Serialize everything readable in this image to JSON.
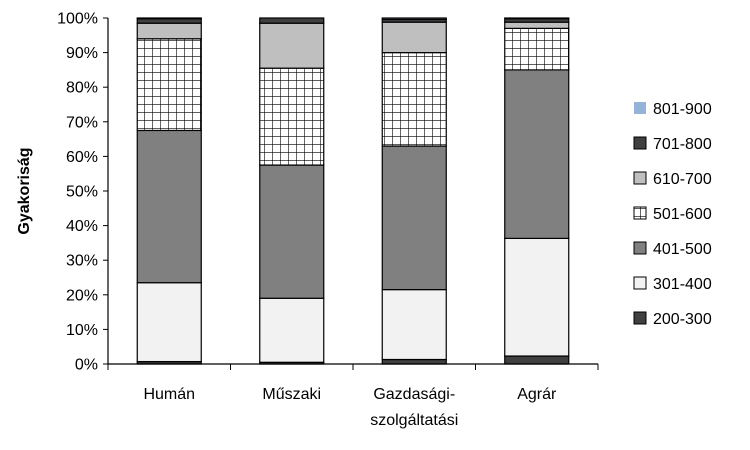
{
  "chart_data": {
    "type": "bar",
    "stacked": true,
    "title": "",
    "xlabel": "",
    "ylabel": "Gyakoriság",
    "ylim": [
      0,
      100
    ],
    "yticks": [
      "0%",
      "10%",
      "20%",
      "30%",
      "40%",
      "50%",
      "60%",
      "70%",
      "80%",
      "90%",
      "100%"
    ],
    "grid": false,
    "legend_position": "right",
    "categories": [
      [
        "Humán"
      ],
      [
        "Műszaki"
      ],
      [
        "Gazdasági-",
        "szolgáltatási"
      ],
      [
        "Agrár"
      ]
    ],
    "series": [
      {
        "name": "200-300",
        "values": [
          0.7,
          0.5,
          1.3,
          2.3
        ],
        "color": "#404040",
        "pattern": "solid"
      },
      {
        "name": "301-400",
        "values": [
          22.8,
          18.5,
          20.2,
          34.0
        ],
        "color": "#f2f2f2",
        "pattern": "solid"
      },
      {
        "name": "401-500",
        "values": [
          44.0,
          38.5,
          41.5,
          48.7
        ],
        "color": "#808080",
        "pattern": "solid"
      },
      {
        "name": "501-600",
        "values": [
          26.5,
          28.0,
          27.0,
          12.0
        ],
        "color": "#ffffff",
        "pattern": "grid"
      },
      {
        "name": "610-700",
        "values": [
          4.5,
          13.0,
          8.8,
          1.8
        ],
        "color": "#bfbfbf",
        "pattern": "solid"
      },
      {
        "name": "701-800",
        "values": [
          1.3,
          1.5,
          0.8,
          1.0
        ],
        "color": "#404040",
        "pattern": "solid"
      },
      {
        "name": "801-900",
        "values": [
          0.2,
          0.0,
          0.4,
          0.2
        ],
        "color": "#95b3d7",
        "pattern": "solid"
      }
    ]
  }
}
